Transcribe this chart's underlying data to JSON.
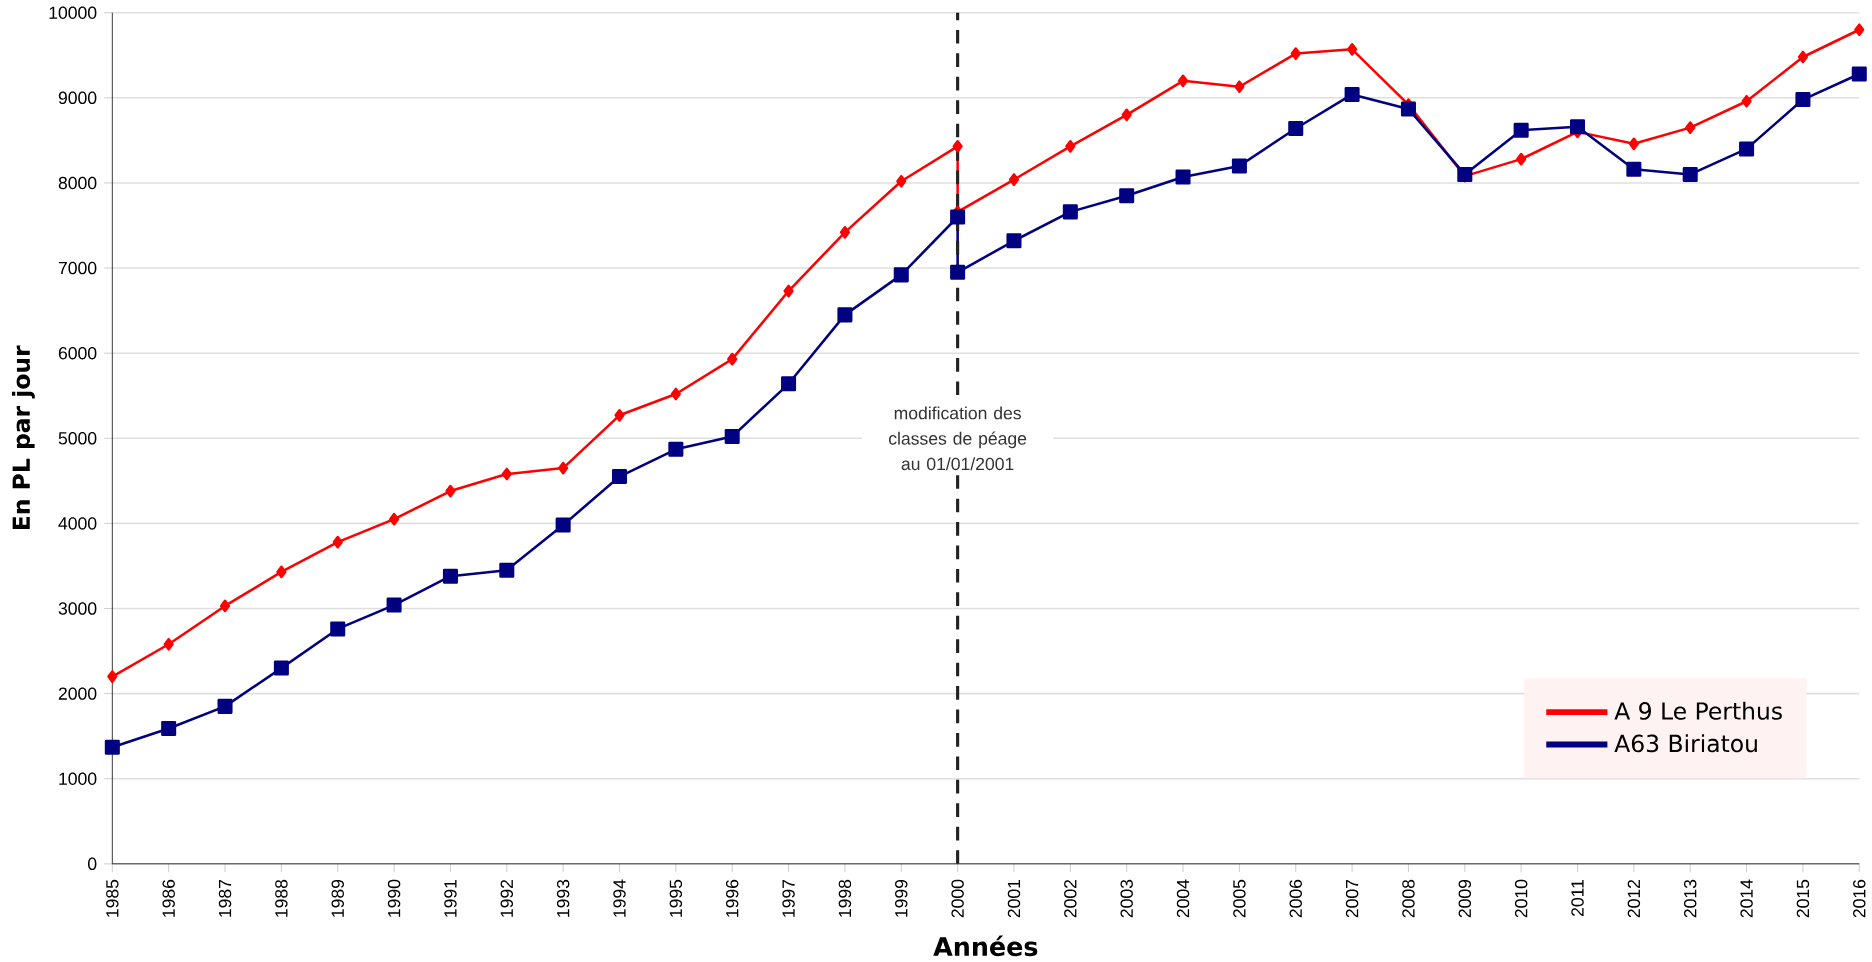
{
  "chart_data": {
    "type": "line",
    "xlabel": "Années",
    "ylabel": "En PL  par jour",
    "x": [
      1985,
      1986,
      1987,
      1988,
      1989,
      1990,
      1991,
      1992,
      1993,
      1994,
      1995,
      1996,
      1997,
      1998,
      1999,
      2000,
      2000,
      2001,
      2002,
      2003,
      2004,
      2005,
      2006,
      2007,
      2008,
      2009,
      2010,
      2011,
      2012,
      2013,
      2014,
      2015,
      2016
    ],
    "series": [
      {
        "name": "A 9 Le Perthus",
        "color": "#ff0000",
        "marker": "diamond",
        "values": [
          2200,
          2580,
          3030,
          3430,
          3780,
          4050,
          4380,
          4580,
          4650,
          5270,
          5520,
          5930,
          6730,
          7420,
          8020,
          8430,
          7660,
          8040,
          8430,
          8800,
          9200,
          9130,
          9520,
          9570,
          8920,
          8080,
          8280,
          8600,
          8460,
          8650,
          8960,
          9480,
          9800
        ]
      },
      {
        "name": "A63 Biriatou",
        "color": "#000080",
        "marker": "square",
        "values": [
          1370,
          1590,
          1850,
          2300,
          2760,
          3040,
          3380,
          3450,
          3980,
          4550,
          4870,
          5020,
          5640,
          6450,
          6920,
          7600,
          6950,
          7320,
          7660,
          7850,
          8070,
          8200,
          8640,
          9040,
          8870,
          8100,
          8620,
          8660,
          8160,
          8100,
          8400,
          8980,
          9280
        ]
      }
    ],
    "xlim": [
      1985,
      2016
    ],
    "xticks": [
      1985,
      1986,
      1987,
      1988,
      1989,
      1990,
      1991,
      1992,
      1993,
      1994,
      1995,
      1996,
      1997,
      1998,
      1999,
      2000,
      2001,
      2002,
      2003,
      2004,
      2005,
      2006,
      2007,
      2008,
      2009,
      2010,
      2011,
      2012,
      2013,
      2014,
      2015,
      2016
    ],
    "ylim": [
      0,
      10000
    ],
    "yticks": [
      0,
      1000,
      2000,
      3000,
      4000,
      5000,
      6000,
      7000,
      8000,
      9000,
      10000
    ],
    "ref_lines": [
      {
        "axis": "x",
        "value": 2000,
        "label": "modification des classes de péage au 01/01/2001",
        "color": "#222222",
        "line_style": "dashed"
      }
    ],
    "grid": "y",
    "legend": "bottom right",
    "line_style": "solid"
  }
}
